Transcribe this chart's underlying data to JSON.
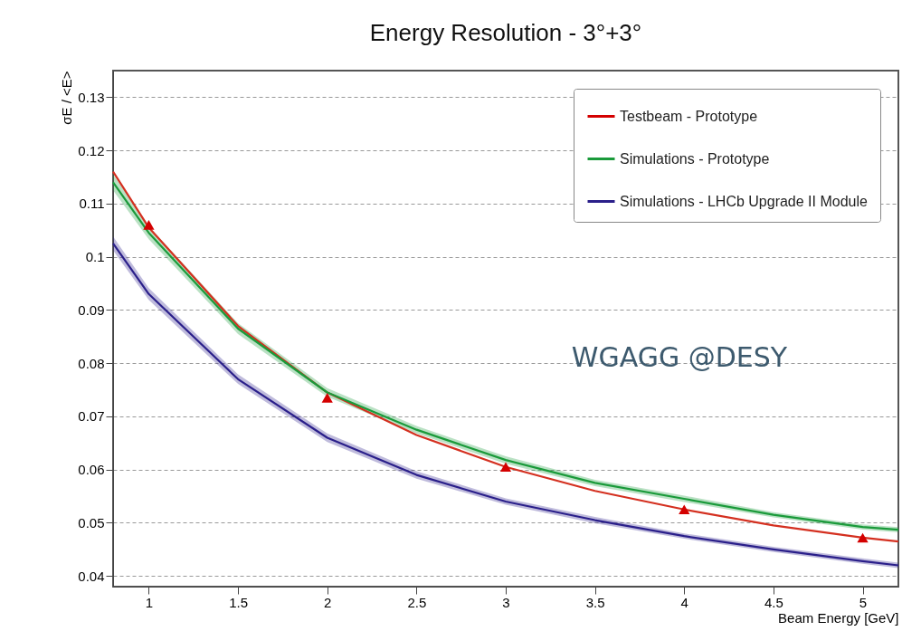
{
  "chart_data": {
    "type": "line",
    "title": "Energy Resolution - 3°+3°",
    "xlabel": "Beam Energy [GeV]",
    "ylabel": "σE / <E>",
    "xlim": [
      0.8,
      5.2
    ],
    "xticks": [
      1,
      1.5,
      2,
      2.5,
      3,
      3.5,
      4,
      4.5,
      5
    ],
    "ylim": [
      0.038,
      0.135
    ],
    "yticks": [
      0.04,
      0.05,
      0.06,
      0.07,
      0.08,
      0.09,
      0.1,
      0.11,
      0.12,
      0.13
    ],
    "grid": "y",
    "legend": "top right",
    "series": [
      {
        "name": "Testbeam - Prototype",
        "type": "scatter",
        "marker": "triangle",
        "color": "#d40000",
        "x": [
          1,
          2,
          3,
          4,
          5
        ],
        "values": [
          0.106,
          0.0735,
          0.0605,
          0.0525,
          0.0472
        ]
      },
      {
        "color": "#d43020",
        "x": [
          0.8,
          1,
          1.5,
          2,
          2.5,
          3,
          3.5,
          4,
          4.5,
          5,
          5.2
        ],
        "values": [
          0.116,
          0.1055,
          0.087,
          0.0745,
          0.0665,
          0.0605,
          0.056,
          0.0525,
          0.0495,
          0.0472,
          0.0465
        ]
      },
      {
        "name": "Simulations - Prototype",
        "color": "#1a9a3a",
        "x": [
          0.8,
          1,
          1.5,
          2,
          2.5,
          3,
          3.5,
          4,
          4.5,
          5,
          5.2
        ],
        "values": [
          0.114,
          0.1045,
          0.0865,
          0.0745,
          0.0675,
          0.0618,
          0.0575,
          0.0545,
          0.0515,
          0.0492,
          0.0487
        ],
        "lower": [
          0.1125,
          0.1033,
          0.0855,
          0.0737,
          0.0668,
          0.0611,
          0.0569,
          0.0539,
          0.051,
          0.0487,
          0.0482
        ],
        "upper": [
          0.1155,
          0.1057,
          0.0875,
          0.0753,
          0.0682,
          0.0625,
          0.0581,
          0.0551,
          0.052,
          0.0497,
          0.0492
        ]
      },
      {
        "name": "Simulations - LHCb Upgrade II Module",
        "color": "#2a1f8a",
        "x": [
          0.8,
          1,
          1.5,
          2,
          2.5,
          3,
          3.5,
          4,
          4.5,
          5,
          5.2
        ],
        "values": [
          0.1025,
          0.093,
          0.077,
          0.066,
          0.059,
          0.054,
          0.0505,
          0.0475,
          0.045,
          0.0428,
          0.042
        ],
        "lower": [
          0.1012,
          0.0919,
          0.0761,
          0.0652,
          0.0583,
          0.0534,
          0.0499,
          0.047,
          0.0445,
          0.0423,
          0.0415
        ],
        "upper": [
          0.1038,
          0.0941,
          0.0779,
          0.0668,
          0.0597,
          0.0546,
          0.0511,
          0.048,
          0.0455,
          0.0433,
          0.0425
        ]
      }
    ],
    "annotations": [
      "WGAGG @DESY"
    ]
  }
}
